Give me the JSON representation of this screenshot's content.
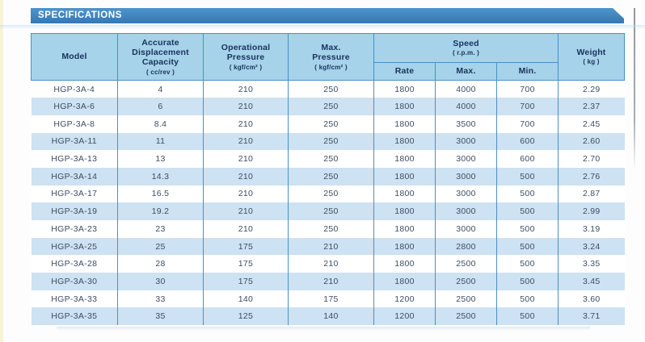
{
  "banner": {
    "title": "SPECIFICATIONS"
  },
  "colors": {
    "banner_blue": "#3d85c2",
    "header_fill": "#a6d2ea",
    "band_fill": "#cde2f3",
    "border_blue": "#4a90c8",
    "header_text": "#17335a",
    "body_text": "#3e4d61",
    "page_edge_cream": "#f8f3d3"
  },
  "table": {
    "header": {
      "model": {
        "title": "Model"
      },
      "capacity": {
        "title": "Accurate\nDisplacement\nCapacity",
        "unit": "( cc/rev )"
      },
      "operational_pressure": {
        "title": "Operational\nPressure",
        "unit": "( kgf/cm² )"
      },
      "max_pressure": {
        "title": "Max.\nPressure",
        "unit": "( kgf/cm² )"
      },
      "speed": {
        "title": "Speed",
        "unit": "( r.p.m. )",
        "sub": [
          "Rate",
          "Max.",
          "Min."
        ]
      },
      "weight": {
        "title": "Weight",
        "unit": "( kg )"
      }
    },
    "rows": [
      [
        "HGP-3A-4",
        "4",
        "210",
        "250",
        "1800",
        "4000",
        "700",
        "2.29"
      ],
      [
        "HGP-3A-6",
        "6",
        "210",
        "250",
        "1800",
        "4000",
        "700",
        "2.37"
      ],
      [
        "HGP-3A-8",
        "8.4",
        "210",
        "250",
        "1800",
        "3500",
        "700",
        "2.45"
      ],
      [
        "HGP-3A-11",
        "11",
        "210",
        "250",
        "1800",
        "3000",
        "600",
        "2.60"
      ],
      [
        "HGP-3A-13",
        "13",
        "210",
        "250",
        "1800",
        "3000",
        "600",
        "2.70"
      ],
      [
        "HGP-3A-14",
        "14.3",
        "210",
        "250",
        "1800",
        "3000",
        "500",
        "2.76"
      ],
      [
        "HGP-3A-17",
        "16.5",
        "210",
        "250",
        "1800",
        "3000",
        "500",
        "2.87"
      ],
      [
        "HGP-3A-19",
        "19.2",
        "210",
        "250",
        "1800",
        "3000",
        "500",
        "2.99"
      ],
      [
        "HGP-3A-23",
        "23",
        "210",
        "250",
        "1800",
        "3000",
        "500",
        "3.19"
      ],
      [
        "HGP-3A-25",
        "25",
        "175",
        "210",
        "1800",
        "2800",
        "500",
        "3.24"
      ],
      [
        "HGP-3A-28",
        "28",
        "175",
        "210",
        "1800",
        "2500",
        "500",
        "3.35"
      ],
      [
        "HGP-3A-30",
        "30",
        "175",
        "210",
        "1800",
        "2500",
        "500",
        "3.45"
      ],
      [
        "HGP-3A-33",
        "33",
        "140",
        "175",
        "1200",
        "2500",
        "500",
        "3.60"
      ],
      [
        "HGP-3A-35",
        "35",
        "125",
        "140",
        "1200",
        "2500",
        "500",
        "3.71"
      ]
    ]
  }
}
